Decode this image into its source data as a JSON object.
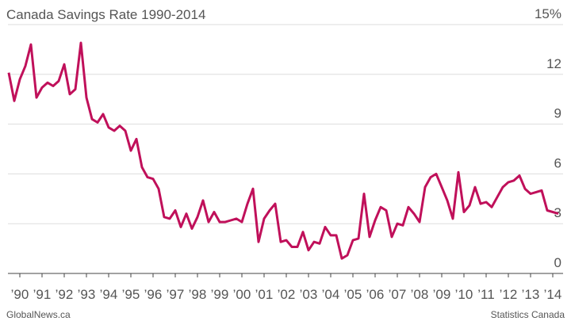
{
  "chart_data": {
    "type": "line",
    "title": "Canada Savings Rate 1990-2014",
    "source": "Statistics Canada",
    "credit": "GlobalNews.ca",
    "categories": [
      null,
      null,
      "’90",
      null,
      null,
      null,
      "’91",
      null,
      null,
      null,
      "’92",
      null,
      null,
      null,
      "’93",
      null,
      null,
      null,
      "’94",
      null,
      null,
      null,
      "’95",
      null,
      null,
      null,
      "’96",
      null,
      null,
      null,
      "’97",
      null,
      null,
      null,
      "’98",
      null,
      null,
      null,
      "’99",
      null,
      null,
      null,
      "’00",
      null,
      null,
      null,
      "’01",
      null,
      null,
      null,
      "’02",
      null,
      null,
      null,
      "’03",
      null,
      null,
      null,
      "’04",
      null,
      null,
      null,
      "’05",
      null,
      null,
      null,
      "’06",
      null,
      null,
      null,
      "’07",
      null,
      null,
      null,
      "’08",
      null,
      null,
      null,
      "’09",
      null,
      null,
      null,
      "’10",
      null,
      null,
      null,
      "’11",
      null,
      null,
      null,
      "’12",
      null,
      null,
      null,
      "’13",
      null,
      null,
      null,
      "’14",
      null
    ],
    "series": [
      {
        "color": "#c0105a",
        "values": [
          12.1,
          10.4,
          11.7,
          12.5,
          13.8,
          10.6,
          11.2,
          11.5,
          11.3,
          11.6,
          12.6,
          10.8,
          11.1,
          13.9,
          10.6,
          9.3,
          9.1,
          9.6,
          8.8,
          8.6,
          8.9,
          8.6,
          7.4,
          8.1,
          6.4,
          5.8,
          5.7,
          5.1,
          3.4,
          3.3,
          3.8,
          2.8,
          3.6,
          2.7,
          3.4,
          4.4,
          3.1,
          3.7,
          3.1,
          3.1,
          3.2,
          3.3,
          3.1,
          4.2,
          5.1,
          1.9,
          3.3,
          3.8,
          4.2,
          1.9,
          2.0,
          1.6,
          1.6,
          2.5,
          1.4,
          1.9,
          1.8,
          2.8,
          2.3,
          2.3,
          0.9,
          1.1,
          2.0,
          2.1,
          4.8,
          2.2,
          3.2,
          4.0,
          3.8,
          2.2,
          3.0,
          2.9,
          4.0,
          3.6,
          3.1,
          5.2,
          5.8,
          6.0,
          5.2,
          4.4,
          3.3,
          6.1,
          3.7,
          4.1,
          5.2,
          4.2,
          4.3,
          4.0,
          4.6,
          5.2,
          5.5,
          5.6,
          5.9,
          5.1,
          4.8,
          4.9,
          5.0,
          3.8,
          3.7,
          3.6
        ]
      }
    ],
    "ylim": [
      0,
      15
    ],
    "yticks": [
      0,
      3,
      6,
      9,
      12,
      {
        "value": 15,
        "label": "15%"
      }
    ],
    "grid": true
  }
}
